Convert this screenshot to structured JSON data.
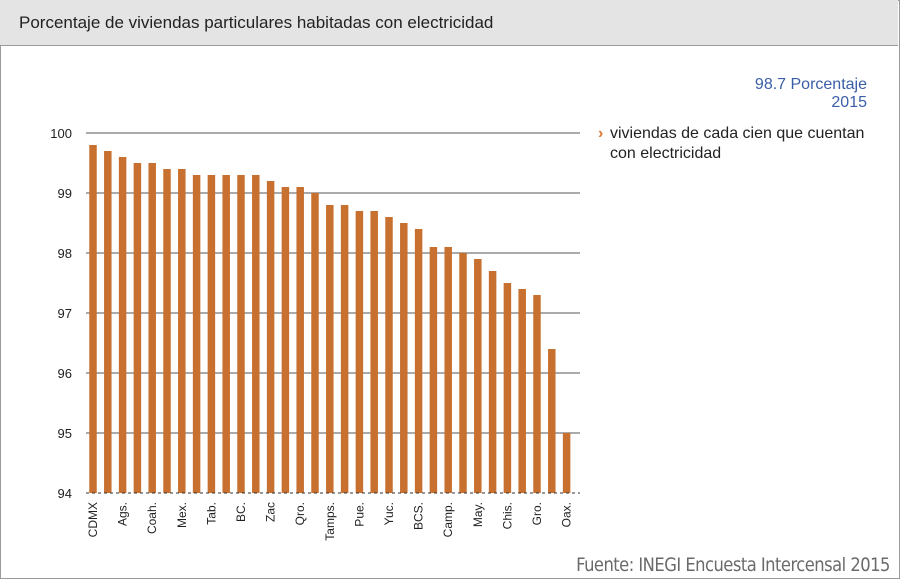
{
  "header": {
    "title": "Porcentaje de viviendas particulares habitadas con electricidad"
  },
  "stat": {
    "value": "98.7 Porcentaje",
    "year": "2015"
  },
  "legend": {
    "text": "viviendas de cada cien que cuentan con electricidad"
  },
  "source": "Fuente: INEGI Encuesta Intercensal 2015",
  "colors": {
    "bar": "#c8702f",
    "grid": "#555555",
    "accent": "#e0782e",
    "stat": "#3b5ea8"
  },
  "chart_data": {
    "type": "bar",
    "ylim": [
      94,
      100
    ],
    "yticks": [
      94,
      95,
      96,
      97,
      98,
      99,
      100
    ],
    "grid": true,
    "categories": [
      "CDMX",
      "",
      "Ags.",
      "",
      "Coah.",
      "",
      "Mex.",
      "",
      "Tab.",
      "",
      "BC.",
      "",
      "Zac",
      "",
      "Qro.",
      "",
      "Tamps.",
      "",
      "Pue.",
      "",
      "Yuc.",
      "",
      "BCS.",
      "",
      "Camp.",
      "",
      "May.",
      "",
      "Chis.",
      "",
      "Gro.",
      "",
      "Oax."
    ],
    "values": [
      99.8,
      99.7,
      99.6,
      99.5,
      99.5,
      99.4,
      99.4,
      99.3,
      99.3,
      99.3,
      99.3,
      99.3,
      99.2,
      99.1,
      99.1,
      99.0,
      98.8,
      98.8,
      98.7,
      98.7,
      98.6,
      98.5,
      98.4,
      98.1,
      98.1,
      98.0,
      97.9,
      97.7,
      97.5,
      97.4,
      97.3,
      96.4,
      95.0
    ]
  }
}
